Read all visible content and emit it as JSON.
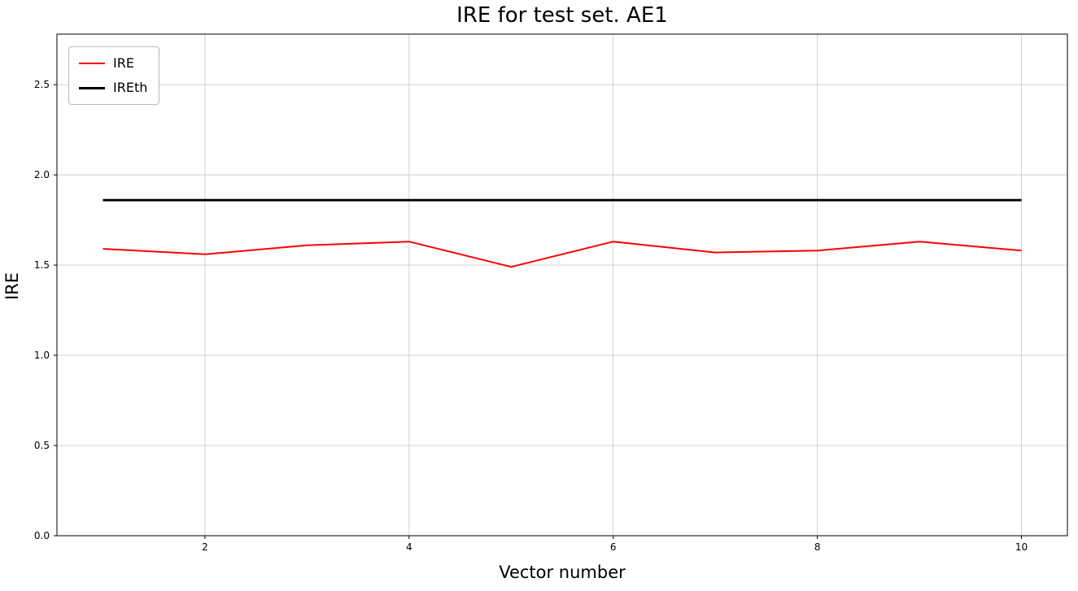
{
  "figure": {
    "title": "IRE for test set. AE1",
    "xlabel": "Vector number",
    "ylabel": "IRE"
  },
  "chart_data": {
    "type": "line",
    "title": "IRE for test set. AE1",
    "xlabel": "Vector number",
    "ylabel": "IRE",
    "xlim": [
      0.55,
      10.45
    ],
    "ylim": [
      0.0,
      2.78
    ],
    "xticks": [
      2,
      4,
      6,
      8,
      10
    ],
    "yticks": [
      0.0,
      0.5,
      1.0,
      1.5,
      2.0,
      2.5
    ],
    "grid": true,
    "legend_position": "upper left",
    "x": [
      1,
      2,
      3,
      4,
      5,
      6,
      7,
      8,
      9,
      10
    ],
    "series": [
      {
        "name": "IRE",
        "color": "#ff0000",
        "width": 2,
        "values": [
          1.59,
          1.56,
          1.61,
          1.63,
          1.49,
          1.63,
          1.57,
          1.58,
          1.63,
          1.58
        ]
      },
      {
        "name": "IREth",
        "color": "#000000",
        "width": 2.8,
        "values": [
          1.86,
          1.86,
          1.86,
          1.86,
          1.86,
          1.86,
          1.86,
          1.86,
          1.86,
          1.86
        ]
      }
    ]
  }
}
